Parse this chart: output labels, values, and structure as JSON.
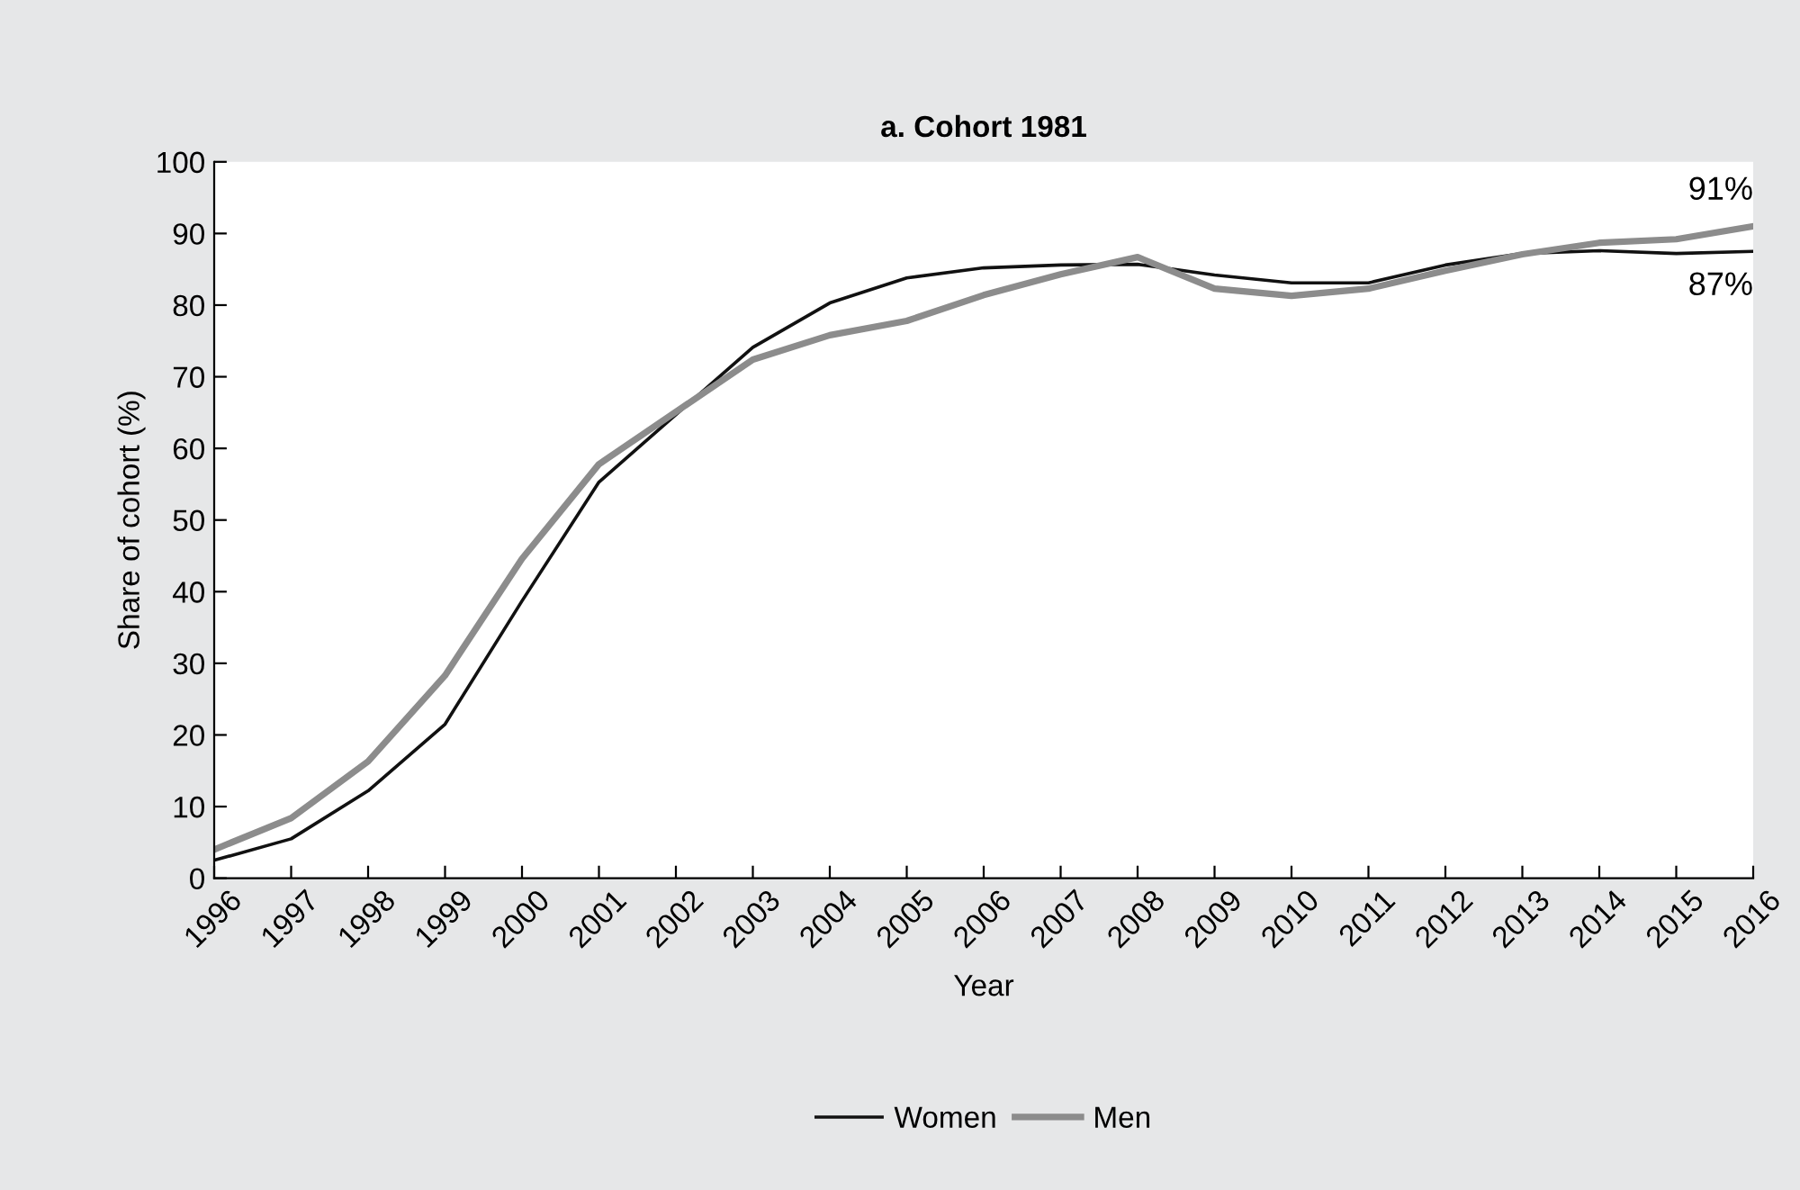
{
  "chart_data": {
    "type": "line",
    "title": "a. Cohort 1981",
    "xlabel": "Year",
    "ylabel": "Share of cohort (%)",
    "categories": [
      "1996",
      "1997",
      "1998",
      "1999",
      "2000",
      "2001",
      "2002",
      "2003",
      "2004",
      "2005",
      "2006",
      "2007",
      "2008",
      "2009",
      "2010",
      "2011",
      "2012",
      "2013",
      "2014",
      "2015",
      "2016"
    ],
    "series": [
      {
        "name": "Women",
        "color": "#111111",
        "values": [
          2.5,
          5.5,
          12.2,
          21.5,
          38.7,
          55.3,
          64.7,
          74.1,
          80.3,
          83.8,
          85.2,
          85.6,
          85.7,
          84.2,
          83.1,
          83.1,
          85.6,
          87.2,
          87.6,
          87.2,
          87.5
        ]
      },
      {
        "name": "Men",
        "color": "#8c8c8c",
        "values": [
          4.0,
          8.4,
          16.3,
          28.3,
          44.6,
          57.8,
          65.1,
          72.4,
          75.8,
          77.8,
          81.4,
          84.3,
          86.7,
          82.3,
          81.3,
          82.3,
          84.8,
          87.1,
          88.7,
          89.2,
          91.0
        ]
      }
    ],
    "ylim": [
      0,
      100
    ],
    "yticks": [
      0,
      10,
      20,
      30,
      40,
      50,
      60,
      70,
      80,
      90,
      100
    ],
    "grid": false,
    "legend": "bottom",
    "annotations": [
      {
        "text": "91%",
        "x": "2016",
        "y": 91.0
      },
      {
        "text": "87%",
        "x": "2016",
        "y": 87.5
      }
    ]
  }
}
